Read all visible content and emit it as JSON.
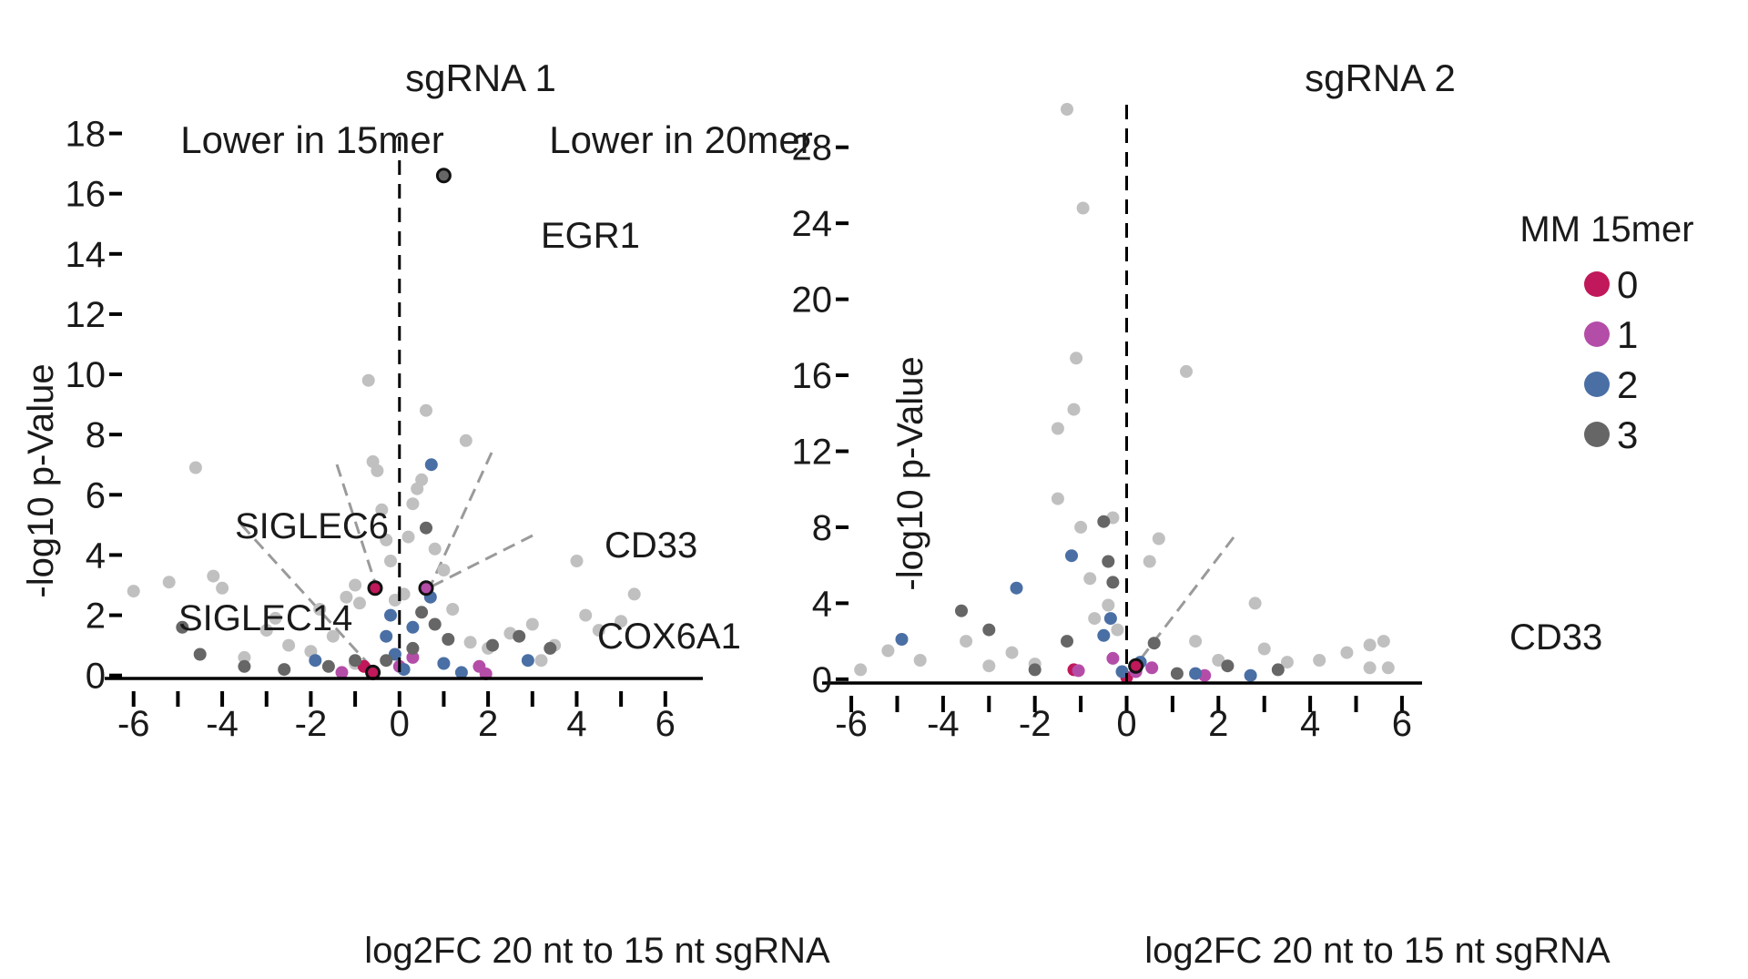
{
  "colors": {
    "background": "#999999",
    "mm0": "#c0185a",
    "mm1": "#b44da8",
    "mm2": "#4a6fa5",
    "mm3": "#666666",
    "axis": "#000000",
    "guide": "#9a9a9a"
  },
  "chart_data": [
    {
      "type": "scatter",
      "title": "sgRNA 1",
      "xlabel": "log2FC 20 nt to 15 nt sgRNA",
      "ylabel": "-log10 p-Value",
      "xlim": [
        -6.2,
        6.6
      ],
      "ylim": [
        -0.1,
        18.5
      ],
      "xticks": [
        -6,
        -4,
        -2,
        0,
        2,
        4,
        6
      ],
      "xtick_labels": [
        "-6",
        "-4",
        "-2",
        "0",
        "2",
        "4",
        "6"
      ],
      "yticks": [
        0,
        2,
        4,
        6,
        8,
        10,
        12,
        14,
        16,
        18
      ],
      "ytick_labels": [
        "0",
        "2",
        "4",
        "6",
        "8",
        "10",
        "12",
        "14",
        "16",
        "18"
      ],
      "zero_line": true,
      "region_labels": {
        "left": "Lower in 15mer",
        "right": "Lower in 20mer"
      },
      "series": [
        {
          "name": "background",
          "points": [
            [
              -6,
              2.8
            ],
            [
              -5.2,
              3.1
            ],
            [
              -4.6,
              6.9
            ],
            [
              -4.2,
              3.3
            ],
            [
              -4.0,
              2.9
            ],
            [
              -3.0,
              1.5
            ],
            [
              -2.8,
              1.9
            ],
            [
              -2.5,
              1.0
            ],
            [
              -2.0,
              0.8
            ],
            [
              -1.8,
              2.2
            ],
            [
              -1.5,
              1.3
            ],
            [
              -1.2,
              2.6
            ],
            [
              -1.0,
              3.0
            ],
            [
              -0.9,
              2.4
            ],
            [
              -0.7,
              9.8
            ],
            [
              -0.6,
              7.1
            ],
            [
              -0.5,
              6.8
            ],
            [
              -0.4,
              5.5
            ],
            [
              -0.3,
              4.5
            ],
            [
              -0.2,
              3.8
            ],
            [
              -0.1,
              2.5
            ],
            [
              0.1,
              2.7
            ],
            [
              0.2,
              4.6
            ],
            [
              0.3,
              5.7
            ],
            [
              0.4,
              6.2
            ],
            [
              0.5,
              6.5
            ],
            [
              0.6,
              8.8
            ],
            [
              0.8,
              4.2
            ],
            [
              1.0,
              3.5
            ],
            [
              1.2,
              2.2
            ],
            [
              1.5,
              7.8
            ],
            [
              1.6,
              1.1
            ],
            [
              2.0,
              0.9
            ],
            [
              2.5,
              1.4
            ],
            [
              3.0,
              1.7
            ],
            [
              3.5,
              1.0
            ],
            [
              4.0,
              3.8
            ],
            [
              4.2,
              2.0
            ],
            [
              4.5,
              1.5
            ],
            [
              5.0,
              1.8
            ],
            [
              5.3,
              2.7
            ],
            [
              -3.5,
              0.6
            ],
            [
              -1.0,
              0.4
            ],
            [
              1.0,
              0.4
            ],
            [
              3.2,
              0.5
            ]
          ]
        },
        {
          "name": "0",
          "points": [
            [
              -0.8,
              0.3
            ]
          ]
        },
        {
          "name": "1",
          "points": [
            [
              -1.3,
              0.1
            ],
            [
              0,
              0.3
            ],
            [
              0.3,
              0.6
            ],
            [
              1.8,
              0.3
            ],
            [
              1.95,
              0.05
            ]
          ]
        },
        {
          "name": "2",
          "points": [
            [
              -1.9,
              0.5
            ],
            [
              -0.3,
              1.3
            ],
            [
              -0.2,
              2.0
            ],
            [
              -0.1,
              0.7
            ],
            [
              0.1,
              0.2
            ],
            [
              0.3,
              1.6
            ],
            [
              0.7,
              2.6
            ],
            [
              0.72,
              7.0
            ],
            [
              1.0,
              0.4
            ],
            [
              1.4,
              0.1
            ],
            [
              2.9,
              0.5
            ]
          ]
        },
        {
          "name": "3",
          "points": [
            [
              -4.9,
              1.6
            ],
            [
              -4.5,
              0.7
            ],
            [
              -3.5,
              0.3
            ],
            [
              -2.6,
              0.2
            ],
            [
              -1.6,
              0.3
            ],
            [
              -1.0,
              0.5
            ],
            [
              -0.3,
              0.5
            ],
            [
              0.3,
              0.9
            ],
            [
              0.5,
              2.1
            ],
            [
              0.6,
              4.9
            ],
            [
              0.8,
              1.7
            ],
            [
              1.1,
              1.2
            ],
            [
              2.1,
              1.0
            ],
            [
              2.7,
              1.3
            ],
            [
              3.4,
              0.9
            ]
          ]
        }
      ],
      "highlighted": [
        {
          "x": 1.0,
          "y": 16.6,
          "label": "EGR1",
          "mm": "3"
        },
        {
          "x": -0.55,
          "y": 2.9,
          "label": "SIGLEC6",
          "mm": "0"
        },
        {
          "x": -0.6,
          "y": 0.1,
          "label": "SIGLEC14",
          "mm": "0"
        },
        {
          "x": 0.6,
          "y": 2.9,
          "label": "CD33",
          "mm": "1"
        }
      ],
      "annotations": [
        {
          "text": "SIGLEC6"
        },
        {
          "text": "SIGLEC14"
        },
        {
          "text": "CD33"
        },
        {
          "text": "COX6A1"
        },
        {
          "text": "EGR1"
        }
      ]
    },
    {
      "type": "scatter",
      "title": "sgRNA 2",
      "xlabel": "log2FC 20 nt to 15 nt sgRNA",
      "ylabel": "-log10 p-Value",
      "xlim": [
        -6.2,
        6.2
      ],
      "ylim": [
        -0.2,
        30
      ],
      "xticks": [
        -6,
        -4,
        -2,
        0,
        2,
        4,
        6
      ],
      "xtick_labels": [
        "-6",
        "-4",
        "-2",
        "0",
        "2",
        "4",
        "6"
      ],
      "yticks": [
        0,
        4,
        8,
        12,
        16,
        20,
        24,
        28
      ],
      "ytick_labels": [
        "0",
        "4",
        "8",
        "12",
        "16",
        "20",
        "24",
        "28"
      ],
      "zero_line": true,
      "series": [
        {
          "name": "background",
          "points": [
            [
              -5.8,
              0.5
            ],
            [
              -5.2,
              1.5
            ],
            [
              -4.5,
              1.0
            ],
            [
              -3.5,
              2.0
            ],
            [
              -2.5,
              1.4
            ],
            [
              -2.0,
              0.8
            ],
            [
              -1.5,
              9.5
            ],
            [
              -1.5,
              13.2
            ],
            [
              -1.3,
              30.0
            ],
            [
              -1.15,
              14.2
            ],
            [
              -1.1,
              16.9
            ],
            [
              -0.95,
              24.8
            ],
            [
              -1.0,
              8.0
            ],
            [
              -0.8,
              5.3
            ],
            [
              -0.7,
              3.2
            ],
            [
              -0.4,
              3.9
            ],
            [
              -0.3,
              8.5
            ],
            [
              -0.2,
              2.6
            ],
            [
              0.5,
              6.2
            ],
            [
              0.7,
              7.4
            ],
            [
              1.3,
              16.2
            ],
            [
              1.5,
              2.0
            ],
            [
              2.0,
              1.0
            ],
            [
              2.8,
              4.0
            ],
            [
              3.0,
              1.6
            ],
            [
              4.2,
              1.0
            ],
            [
              4.8,
              1.4
            ],
            [
              5.3,
              1.8
            ],
            [
              5.6,
              2.0
            ],
            [
              5.7,
              0.6
            ],
            [
              5.3,
              0.6
            ],
            [
              -3.0,
              0.7
            ],
            [
              3.5,
              0.9
            ]
          ]
        },
        {
          "name": "0",
          "points": [
            [
              -1.15,
              0.5
            ],
            [
              0.0,
              0.1
            ]
          ]
        },
        {
          "name": "1",
          "points": [
            [
              -1.05,
              0.45
            ],
            [
              -0.3,
              1.1
            ],
            [
              0.2,
              0.4
            ],
            [
              0.55,
              0.6
            ],
            [
              1.7,
              0.2
            ]
          ]
        },
        {
          "name": "2",
          "points": [
            [
              -4.9,
              2.1
            ],
            [
              -2.4,
              4.8
            ],
            [
              -1.2,
              6.5
            ],
            [
              -0.35,
              3.2
            ],
            [
              -0.5,
              2.3
            ],
            [
              -0.1,
              0.4
            ],
            [
              0.3,
              0.9
            ],
            [
              1.5,
              0.3
            ],
            [
              2.7,
              0.2
            ]
          ]
        },
        {
          "name": "3",
          "points": [
            [
              -3.6,
              3.6
            ],
            [
              -3.0,
              2.6
            ],
            [
              -2.0,
              0.5
            ],
            [
              -1.3,
              2.0
            ],
            [
              -0.5,
              8.3
            ],
            [
              -0.4,
              6.2
            ],
            [
              -0.3,
              5.1
            ],
            [
              0.6,
              1.9
            ],
            [
              1.1,
              0.3
            ],
            [
              2.2,
              0.7
            ],
            [
              3.3,
              0.5
            ]
          ]
        }
      ],
      "highlighted": [
        {
          "x": 0.2,
          "y": 0.7,
          "label": "CD33",
          "mm": "0"
        }
      ],
      "annotations": [
        {
          "text": "CD33"
        }
      ],
      "legend": {
        "title": "MM 15mer",
        "entries": [
          {
            "key": "0",
            "label": "0"
          },
          {
            "key": "1",
            "label": "1"
          },
          {
            "key": "2",
            "label": "2"
          },
          {
            "key": "3",
            "label": "3"
          }
        ],
        "placement": "top-right"
      }
    }
  ]
}
